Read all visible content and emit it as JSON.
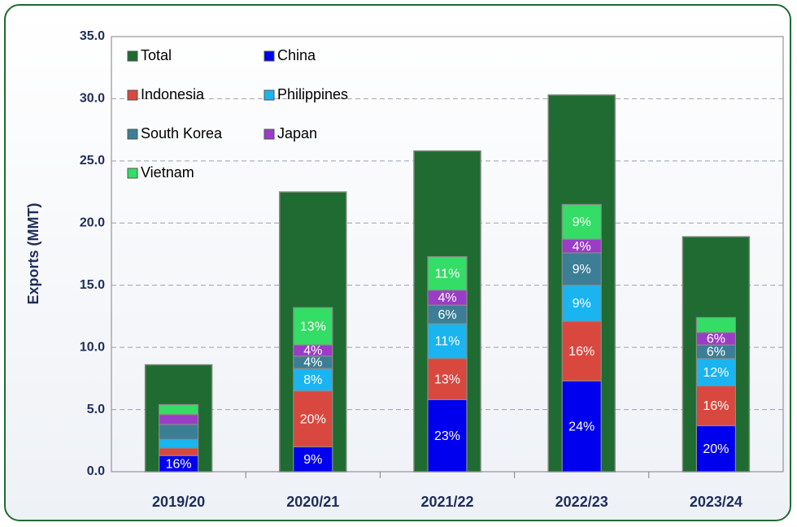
{
  "chart_data": {
    "type": "stacked-bar-with-total",
    "y_label": "Exports (MMT)",
    "categories": [
      "2019/20",
      "2020/21",
      "2021/22",
      "2022/23",
      "2023/24"
    ],
    "ylim": [
      0,
      35
    ],
    "yticks": [
      {
        "value": 0,
        "label": "0.0"
      },
      {
        "value": 5,
        "label": "5.0"
      },
      {
        "value": 10,
        "label": "10.0"
      },
      {
        "value": 15,
        "label": "15.0"
      },
      {
        "value": 20,
        "label": "20.0"
      },
      {
        "value": 25,
        "label": "25.0"
      },
      {
        "value": 30,
        "label": "30.0"
      },
      {
        "value": 35,
        "label": "35.0"
      }
    ],
    "grid": true,
    "legend": "upper left",
    "total": {
      "name": "Total",
      "color": "#1f6b32",
      "values": [
        8.6,
        22.5,
        25.8,
        30.3,
        18.9
      ]
    },
    "series": [
      {
        "name": "China",
        "color": "#0000ee",
        "values": [
          1.3,
          2.0,
          5.8,
          7.3,
          3.7
        ],
        "labels": [
          "16%",
          "9%",
          "23%",
          "24%",
          "20%"
        ]
      },
      {
        "name": "Indonesia",
        "color": "#d9483f",
        "values": [
          0.6,
          4.5,
          3.3,
          4.8,
          3.2
        ],
        "labels": [
          null,
          "20%",
          "13%",
          "16%",
          "16%"
        ]
      },
      {
        "name": "Philippines",
        "color": "#1ab4f0",
        "values": [
          0.7,
          1.8,
          2.8,
          2.9,
          2.2
        ],
        "labels": [
          null,
          "8%",
          "11%",
          "9%",
          "12%"
        ]
      },
      {
        "name": "South Korea",
        "color": "#3c7e96",
        "values": [
          1.2,
          1.0,
          1.5,
          2.6,
          1.1
        ],
        "labels": [
          null,
          "4%",
          "6%",
          "9%",
          "6%"
        ]
      },
      {
        "name": "Japan",
        "color": "#9a3cc6",
        "values": [
          0.8,
          0.9,
          1.2,
          1.1,
          1.0
        ],
        "labels": [
          null,
          "4%",
          "4%",
          "4%",
          "6%"
        ]
      },
      {
        "name": "Vietnam",
        "color": "#33dd66",
        "values": [
          0.8,
          3.0,
          2.7,
          2.8,
          1.2
        ],
        "labels": [
          null,
          "13%",
          "11%",
          "9%",
          null
        ]
      }
    ]
  }
}
